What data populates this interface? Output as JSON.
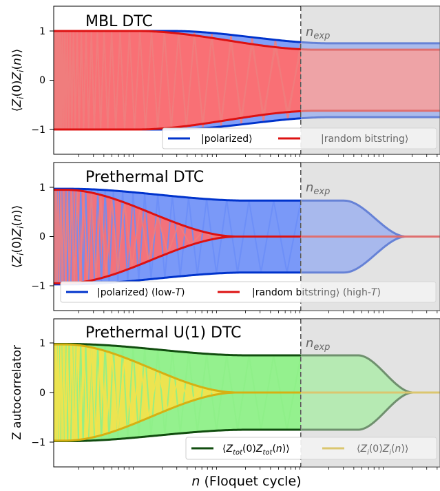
{
  "xlabel_italic": "n",
  "xlabel_rest": " (Floquet cycle)",
  "annotation_n": "n",
  "annotation_sub": "exp",
  "colors": {
    "blue": "#0033cc",
    "blue_fill": "#6b8ef7",
    "red": "#dd1111",
    "red_fill": "#ff6e6e",
    "red_line_light": "#f07d7d",
    "green": "#114d0f",
    "green_fill": "#8ef088",
    "yellow": "#d6b012",
    "yellow_fill": "#f5e24a",
    "shade": "#e3e3e3",
    "dash": "#555555"
  },
  "chart_data": [
    {
      "type": "line",
      "title": "MBL DTC",
      "ylabel": "⟨Z_i(0)Z_i(n)⟩",
      "ylim": [
        -1.5,
        1.5
      ],
      "yticks": [
        "1",
        "0",
        "−1"
      ],
      "xscale": "log",
      "n_exp_marker": true,
      "shaded_region": "right of n_exp",
      "legend_position": "lower-right",
      "series": [
        {
          "name": "|polarized⟩",
          "color": "#0033cc",
          "envelope_start": 1.0,
          "envelope_end": 0.75,
          "x_end_fraction": 1.0
        },
        {
          "name": "|random bitstring⟩",
          "color": "#dd1111",
          "envelope_start": 1.0,
          "envelope_end": 0.6,
          "x_end_fraction": 1.0
        }
      ]
    },
    {
      "type": "line",
      "title": "Prethermal DTC",
      "ylabel": "⟨Z_i(0)Z_i(n)⟩",
      "ylim": [
        -1.5,
        1.5
      ],
      "yticks": [
        "1",
        "0",
        "−1"
      ],
      "xscale": "log",
      "n_exp_marker": true,
      "shaded_region": "right of n_exp",
      "legend_position": "lower-center",
      "series": [
        {
          "name": "|polarized⟩ (low-",
          "name_italic": "T",
          "name_tail": ")",
          "color": "#0033cc",
          "envelope_start": 0.97,
          "envelope_end": 0.73
        },
        {
          "name": "|random bitstring⟩ (high-",
          "name_italic": "T",
          "name_tail": ")",
          "color": "#dd1111",
          "envelope_start": 0.95,
          "envelope_end": 0.0
        }
      ]
    },
    {
      "type": "line",
      "title": "Prethermal U(1) DTC",
      "ylabel": "Z autocorrelator",
      "ylim": [
        -1.5,
        1.5
      ],
      "yticks": [
        "1",
        "0",
        "−1"
      ],
      "xscale": "log",
      "n_exp_marker": true,
      "shaded_region": "right of n_exp",
      "legend_position": "lower-right",
      "series": [
        {
          "name": "⟨Z_tot(0)Z_tot(n)⟩",
          "color": "#114d0f",
          "envelope_start": 0.98,
          "envelope_end": 0.75
        },
        {
          "name": "⟨Z_i(0)Z_i(n)⟩",
          "color": "#d6b012",
          "envelope_start": 0.97,
          "envelope_end": 0.0
        }
      ]
    }
  ]
}
